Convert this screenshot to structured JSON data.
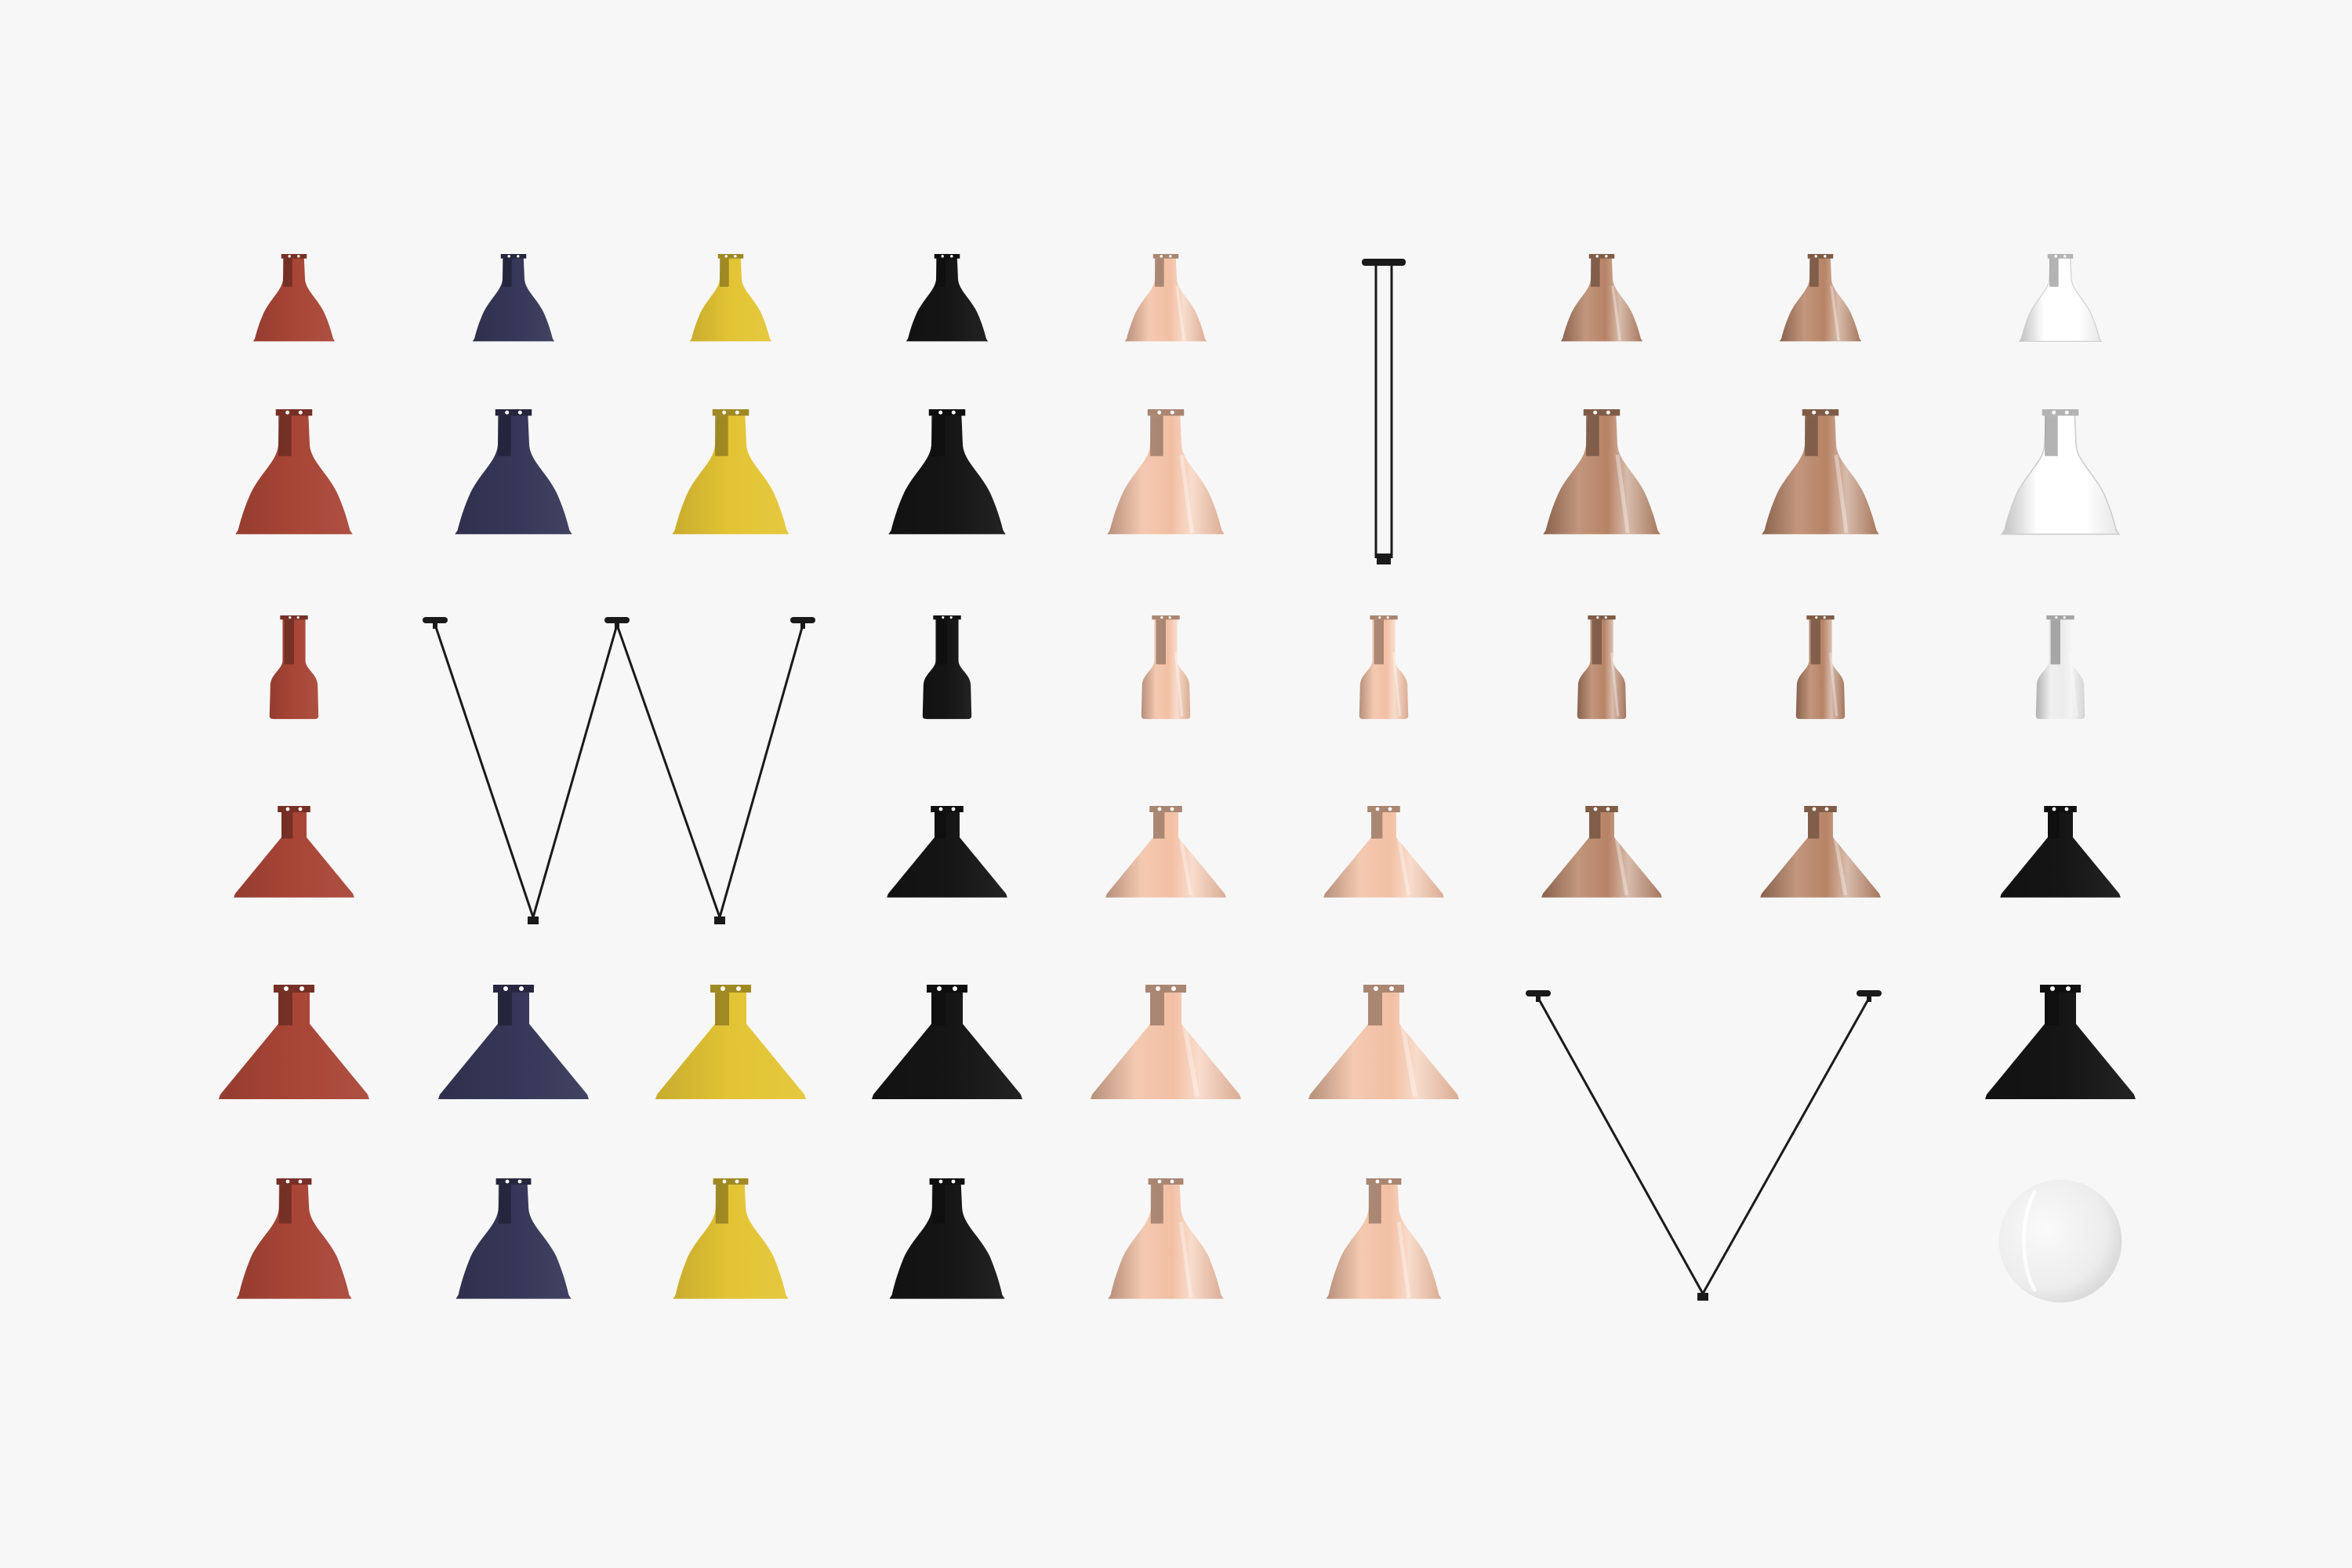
{
  "palette": {
    "background": "#f7f7f7",
    "red": "#a84536",
    "blue": "#363758",
    "yellow": "#e3c434",
    "black": "#151515",
    "copper": "#f2bfa3",
    "raw_copper": "#b78366",
    "white": "#ffffff",
    "opal": "#ececec",
    "wire": "#1a1a1a"
  },
  "grid": {
    "columns": 9,
    "rows": 6,
    "row_names": [
      "round-small",
      "round-large",
      "cylindrical",
      "conic-small",
      "conic-large",
      "round-xl"
    ]
  },
  "shades": [
    {
      "name": "shade-round-small-red",
      "row": 1,
      "col": 1,
      "shape": "round-small",
      "finish": "red"
    },
    {
      "name": "shade-round-small-blue",
      "row": 1,
      "col": 2,
      "shape": "round-small",
      "finish": "blue"
    },
    {
      "name": "shade-round-small-yellow",
      "row": 1,
      "col": 3,
      "shape": "round-small",
      "finish": "yellow"
    },
    {
      "name": "shade-round-small-black",
      "row": 1,
      "col": 4,
      "shape": "round-small",
      "finish": "black"
    },
    {
      "name": "shade-round-small-copper",
      "row": 1,
      "col": 5,
      "shape": "round-small",
      "finish": "copper"
    },
    {
      "name": "shade-round-small-raw-copper",
      "row": 1,
      "col": 7,
      "shape": "round-small",
      "finish": "raw_copper"
    },
    {
      "name": "shade-round-small-raw-copper-2",
      "row": 1,
      "col": 8,
      "shape": "round-small",
      "finish": "raw_copper"
    },
    {
      "name": "shade-round-small-white",
      "row": 1,
      "col": 9,
      "shape": "round-small",
      "finish": "white"
    },
    {
      "name": "shade-round-large-red",
      "row": 2,
      "col": 1,
      "shape": "round-large",
      "finish": "red"
    },
    {
      "name": "shade-round-large-blue",
      "row": 2,
      "col": 2,
      "shape": "round-large",
      "finish": "blue"
    },
    {
      "name": "shade-round-large-yellow",
      "row": 2,
      "col": 3,
      "shape": "round-large",
      "finish": "yellow"
    },
    {
      "name": "shade-round-large-black",
      "row": 2,
      "col": 4,
      "shape": "round-large",
      "finish": "black"
    },
    {
      "name": "shade-round-large-copper",
      "row": 2,
      "col": 5,
      "shape": "round-large",
      "finish": "copper"
    },
    {
      "name": "shade-round-large-raw-copper",
      "row": 2,
      "col": 7,
      "shape": "round-large",
      "finish": "raw_copper"
    },
    {
      "name": "shade-round-large-raw-copper-2",
      "row": 2,
      "col": 8,
      "shape": "round-large",
      "finish": "raw_copper"
    },
    {
      "name": "shade-round-large-white",
      "row": 2,
      "col": 9,
      "shape": "round-large",
      "finish": "white"
    },
    {
      "name": "shade-cylindrical-red",
      "row": 3,
      "col": 1,
      "shape": "cylindrical",
      "finish": "red"
    },
    {
      "name": "shade-cylindrical-black",
      "row": 3,
      "col": 4,
      "shape": "cylindrical",
      "finish": "black"
    },
    {
      "name": "shade-cylindrical-copper",
      "row": 3,
      "col": 5,
      "shape": "cylindrical",
      "finish": "copper"
    },
    {
      "name": "shade-cylindrical-copper-2",
      "row": 3,
      "col": 6,
      "shape": "cylindrical",
      "finish": "copper"
    },
    {
      "name": "shade-cylindrical-raw-copper",
      "row": 3,
      "col": 7,
      "shape": "cylindrical",
      "finish": "raw_copper"
    },
    {
      "name": "shade-cylindrical-raw-copper-2",
      "row": 3,
      "col": 8,
      "shape": "cylindrical",
      "finish": "raw_copper"
    },
    {
      "name": "shade-cylindrical-white",
      "row": 3,
      "col": 9,
      "shape": "cylindrical",
      "finish": "opal"
    },
    {
      "name": "shade-conic-small-red",
      "row": 4,
      "col": 1,
      "shape": "conic-small",
      "finish": "red"
    },
    {
      "name": "shade-conic-small-black",
      "row": 4,
      "col": 4,
      "shape": "conic-small",
      "finish": "black"
    },
    {
      "name": "shade-conic-small-copper",
      "row": 4,
      "col": 5,
      "shape": "conic-small",
      "finish": "copper"
    },
    {
      "name": "shade-conic-small-copper-2",
      "row": 4,
      "col": 6,
      "shape": "conic-small",
      "finish": "copper"
    },
    {
      "name": "shade-conic-small-raw-copper",
      "row": 4,
      "col": 7,
      "shape": "conic-small",
      "finish": "raw_copper"
    },
    {
      "name": "shade-conic-small-raw-copper-2",
      "row": 4,
      "col": 8,
      "shape": "conic-small",
      "finish": "raw_copper"
    },
    {
      "name": "shade-conic-small-black-2",
      "row": 4,
      "col": 9,
      "shape": "conic-small",
      "finish": "black"
    },
    {
      "name": "shade-conic-large-red",
      "row": 5,
      "col": 1,
      "shape": "conic-large",
      "finish": "red"
    },
    {
      "name": "shade-conic-large-blue",
      "row": 5,
      "col": 2,
      "shape": "conic-large",
      "finish": "blue"
    },
    {
      "name": "shade-conic-large-yellow",
      "row": 5,
      "col": 3,
      "shape": "conic-large",
      "finish": "yellow"
    },
    {
      "name": "shade-conic-large-black",
      "row": 5,
      "col": 4,
      "shape": "conic-large",
      "finish": "black"
    },
    {
      "name": "shade-conic-large-copper",
      "row": 5,
      "col": 5,
      "shape": "conic-large",
      "finish": "copper"
    },
    {
      "name": "shade-conic-large-copper-2",
      "row": 5,
      "col": 6,
      "shape": "conic-large",
      "finish": "copper"
    },
    {
      "name": "shade-conic-large-black-2",
      "row": 5,
      "col": 9,
      "shape": "conic-large",
      "finish": "black"
    },
    {
      "name": "shade-round-xl-red",
      "row": 6,
      "col": 1,
      "shape": "round-xl",
      "finish": "red"
    },
    {
      "name": "shade-round-xl-blue",
      "row": 6,
      "col": 2,
      "shape": "round-xl",
      "finish": "blue"
    },
    {
      "name": "shade-round-xl-yellow",
      "row": 6,
      "col": 3,
      "shape": "round-xl",
      "finish": "yellow"
    },
    {
      "name": "shade-round-xl-black",
      "row": 6,
      "col": 4,
      "shape": "round-xl",
      "finish": "black"
    },
    {
      "name": "shade-round-xl-copper",
      "row": 6,
      "col": 5,
      "shape": "round-xl",
      "finish": "copper"
    },
    {
      "name": "shade-round-xl-copper-2",
      "row": 6,
      "col": 6,
      "shape": "round-xl",
      "finish": "copper"
    },
    {
      "name": "shade-opal-globe",
      "row": 6,
      "col": 9,
      "shape": "globe",
      "finish": "opal"
    }
  ],
  "suspensions": [
    {
      "name": "suspension-i-rod",
      "shape": "I"
    },
    {
      "name": "suspension-w-wire",
      "shape": "W"
    },
    {
      "name": "suspension-v-wire",
      "shape": "V"
    }
  ]
}
